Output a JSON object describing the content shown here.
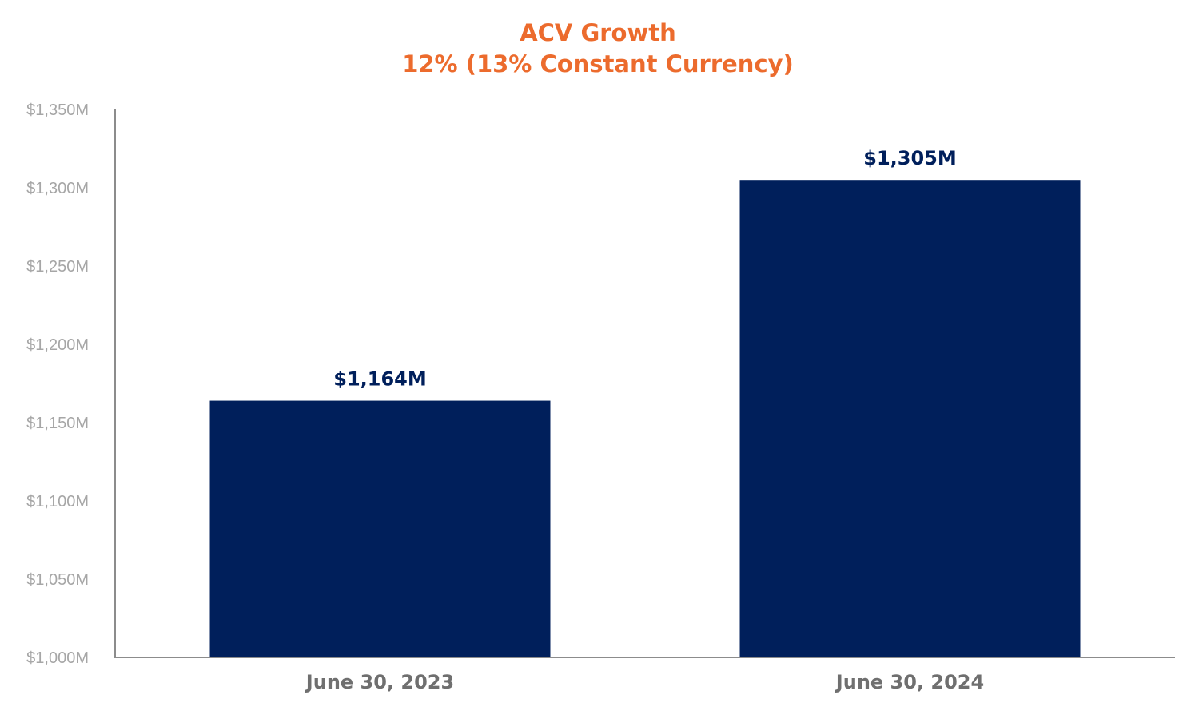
{
  "colors": {
    "title": "#EC6B2D",
    "bar": "#001F5B",
    "data_label": "#001F5B",
    "y_tick": "#A6A6A6",
    "x_tick": "#6F6F6F",
    "axis": "#8C8C8C",
    "background": "#FFFFFF"
  },
  "chart_data": {
    "type": "bar",
    "title": "ACV Growth",
    "subtitle": "12% (13% Constant Currency)",
    "categories": [
      "June 30, 2023",
      "June 30, 2024"
    ],
    "values": [
      1164,
      1305
    ],
    "data_labels": [
      "$1,164M",
      "$1,305M"
    ],
    "xlabel": "",
    "ylabel": "",
    "ylim": [
      1000,
      1350
    ],
    "yticks": [
      1000,
      1050,
      1100,
      1150,
      1200,
      1250,
      1300,
      1350
    ],
    "ytick_labels": [
      "$1,000M",
      "$1,050M",
      "$1,100M",
      "$1,150M",
      "$1,200M",
      "$1,250M",
      "$1,300M",
      "$1,350M"
    ],
    "grid": false,
    "legend": "none"
  }
}
